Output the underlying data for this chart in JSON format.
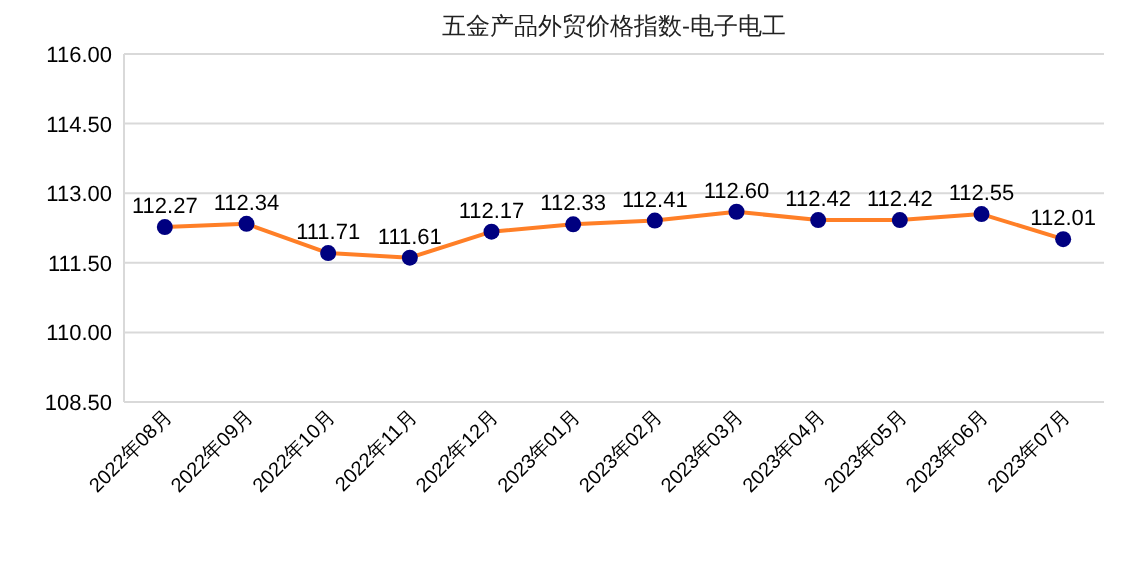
{
  "chart_data": {
    "type": "line",
    "title": "五金产品外贸价格指数-电子电工",
    "categories": [
      "2022年08月",
      "2022年09月",
      "2022年10月",
      "2022年11月",
      "2022年12月",
      "2023年01月",
      "2023年02月",
      "2023年03月",
      "2023年04月",
      "2023年05月",
      "2023年06月",
      "2023年07月"
    ],
    "series": [
      {
        "color": "#ff7f27",
        "colors": [
          "#000080",
          "#000080",
          "#000080",
          "#000080",
          "#000080",
          "#000080",
          "#000080",
          "#000080",
          "#000080",
          "#000080",
          "#000080",
          "#000080"
        ],
        "values": [
          112.27,
          112.34,
          111.71,
          111.61,
          112.17,
          112.33,
          112.41,
          112.6,
          112.42,
          112.42,
          112.55,
          112.01
        ],
        "value_labels": [
          "112.27",
          "112.34",
          "111.71",
          "111.61",
          "112.17",
          "112.33",
          "112.41",
          "112.60",
          "112.42",
          "112.42",
          "112.55",
          "112.01"
        ]
      }
    ],
    "ylim": [
      108.5,
      116
    ],
    "yticks": [
      {
        "value": 108.5,
        "label": "108.50"
      },
      {
        "value": 110,
        "label": "110.00"
      },
      {
        "value": 111.5,
        "label": "111.50"
      },
      {
        "value": 113,
        "label": "113.00"
      },
      {
        "value": 114.5,
        "label": "114.50"
      },
      {
        "value": 116,
        "label": "116.00"
      }
    ],
    "grid": "y",
    "marker": "circle",
    "line_style": "solid"
  }
}
